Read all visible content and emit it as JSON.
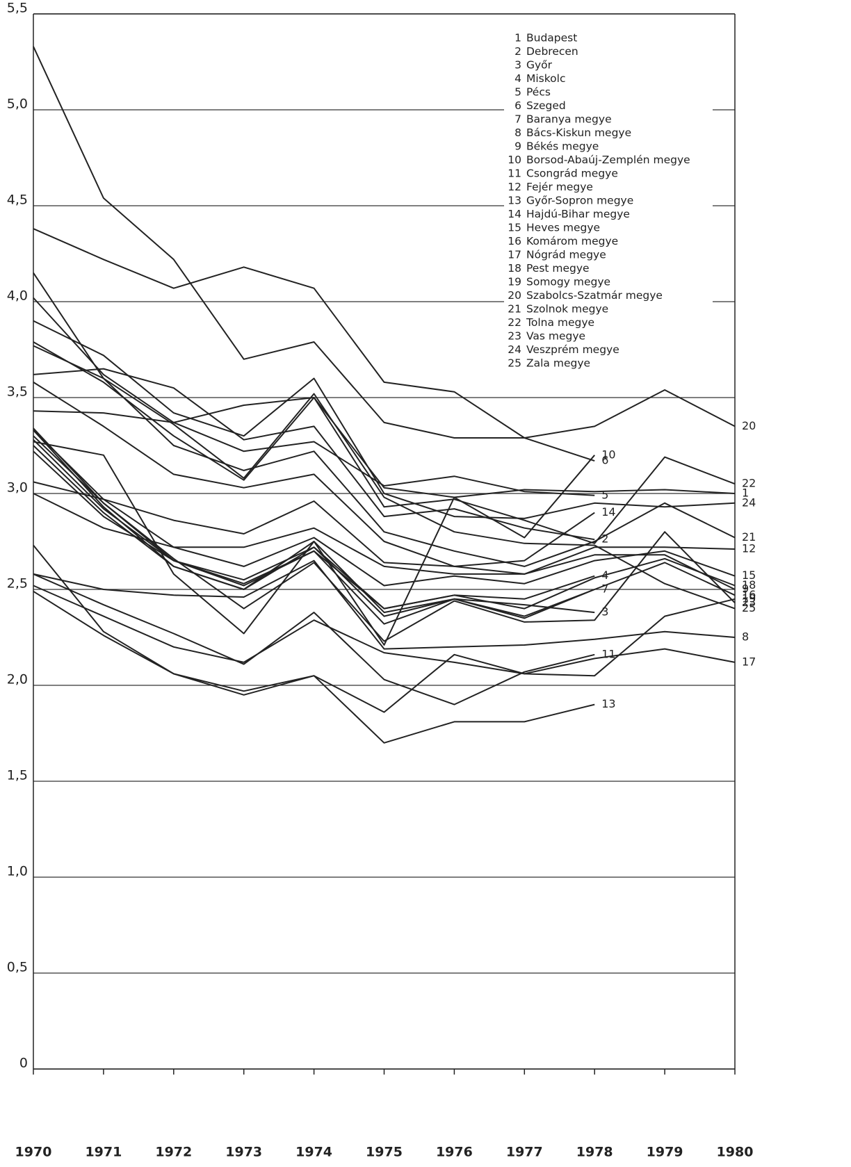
{
  "chart_data": {
    "type": "line",
    "categories": [
      "1970",
      "1971",
      "1972",
      "1973",
      "1974",
      "1975",
      "1976",
      "1977",
      "1978",
      "1979",
      "1980"
    ],
    "ylim": [
      0,
      5.5
    ],
    "yticks": [
      0,
      {
        "value": 0.5,
        "label": "0,5"
      },
      {
        "value": 1.0,
        "label": "1,0"
      },
      {
        "value": 1.5,
        "label": "1,5"
      },
      {
        "value": 2.0,
        "label": "2,0"
      },
      {
        "value": 2.5,
        "label": "2,5"
      },
      {
        "value": 3.0,
        "label": "3,0"
      },
      {
        "value": 3.5,
        "label": "3,5"
      },
      {
        "value": 4.0,
        "label": "4,0"
      },
      {
        "value": 4.5,
        "label": "4,5"
      },
      {
        "value": 5.0,
        "label": "5,0"
      },
      {
        "value": 5.5,
        "label": "5,5"
      }
    ],
    "grid": true,
    "color": "#222222",
    "series": [
      {
        "label": "1",
        "name": "Budapest",
        "values": [
          3.43,
          3.42,
          3.37,
          3.46,
          3.5,
          3.03,
          2.98,
          3.02,
          3.01,
          3.02,
          3.0
        ]
      },
      {
        "label": "2",
        "name": "Debrecen",
        "values": [
          3.62,
          3.65,
          3.55,
          3.28,
          3.35,
          2.88,
          2.92,
          2.82,
          2.76,
          null,
          null
        ]
      },
      {
        "label": "3",
        "name": "Győr",
        "values": [
          3.33,
          2.93,
          2.62,
          2.5,
          2.75,
          2.38,
          2.45,
          2.42,
          2.38,
          null,
          null
        ]
      },
      {
        "label": "4",
        "name": "Miskolc",
        "values": [
          3.3,
          2.95,
          2.65,
          2.55,
          2.72,
          2.4,
          2.47,
          2.45,
          2.57,
          null,
          null
        ]
      },
      {
        "label": "5",
        "name": "Pécs",
        "values": [
          4.02,
          3.62,
          3.37,
          3.22,
          3.27,
          3.04,
          3.09,
          3.01,
          2.99,
          null,
          null
        ]
      },
      {
        "label": "6",
        "name": "Szeged",
        "values": [
          4.38,
          4.22,
          4.07,
          4.18,
          4.07,
          3.58,
          3.53,
          3.29,
          3.17,
          null,
          null
        ]
      },
      {
        "label": "7",
        "name": "Baranya megye",
        "values": [
          3.28,
          2.92,
          2.65,
          2.52,
          2.7,
          2.32,
          2.45,
          2.36,
          2.5,
          null,
          null
        ]
      },
      {
        "label": "8",
        "name": "Bács-Kiskun megye",
        "values": [
          2.58,
          2.5,
          2.47,
          2.46,
          2.65,
          2.19,
          2.2,
          2.21,
          2.24,
          2.28,
          2.25
        ]
      },
      {
        "label": "9",
        "name": "Békés megye",
        "values": [
          3.0,
          2.82,
          2.72,
          2.72,
          2.82,
          2.62,
          2.58,
          2.58,
          2.68,
          2.68,
          2.5
        ]
      },
      {
        "label": "10",
        "name": "Borsod-Abaúj-Zemplén megye",
        "values": [
          3.27,
          3.2,
          2.58,
          2.27,
          2.75,
          2.21,
          2.98,
          2.77,
          3.2,
          null,
          null
        ]
      },
      {
        "label": "11",
        "name": "Csongrád megye",
        "values": [
          2.58,
          2.42,
          2.27,
          2.11,
          2.38,
          2.03,
          1.9,
          2.07,
          2.16,
          null,
          null
        ]
      },
      {
        "label": "12",
        "name": "Fejér megye",
        "values": [
          3.06,
          2.97,
          2.86,
          2.79,
          2.96,
          2.64,
          2.62,
          2.58,
          2.72,
          2.72,
          2.71
        ]
      },
      {
        "label": "13",
        "name": "Győr-Sopron megye",
        "values": [
          2.49,
          2.26,
          2.06,
          1.97,
          2.05,
          1.7,
          1.81,
          1.81,
          1.9,
          null,
          null
        ]
      },
      {
        "label": "14",
        "name": "Hajdú-Bihar megye",
        "values": [
          3.58,
          3.35,
          3.1,
          3.03,
          3.1,
          2.75,
          2.62,
          2.65,
          2.9,
          null,
          null
        ]
      },
      {
        "label": "15",
        "name": "Heves megye",
        "values": [
          3.33,
          2.97,
          2.72,
          2.62,
          2.77,
          2.52,
          2.57,
          2.53,
          2.65,
          2.7,
          2.57
        ]
      },
      {
        "label": "16",
        "name": "Komárom megye",
        "values": [
          3.25,
          2.9,
          2.62,
          2.5,
          2.72,
          2.36,
          2.45,
          2.35,
          2.5,
          2.64,
          2.47
        ]
      },
      {
        "label": "17",
        "name": "Nógrád megye",
        "values": [
          2.52,
          2.36,
          2.2,
          2.12,
          2.34,
          2.17,
          2.12,
          2.06,
          2.14,
          2.19,
          2.12
        ]
      },
      {
        "label": "18",
        "name": "Pest megye",
        "values": [
          3.22,
          2.88,
          2.65,
          2.53,
          2.7,
          2.4,
          2.47,
          2.4,
          2.56,
          2.66,
          2.52
        ]
      },
      {
        "label": "19",
        "name": "Somogy megye",
        "values": [
          2.73,
          2.28,
          2.06,
          1.95,
          2.05,
          1.86,
          2.16,
          2.06,
          2.05,
          2.36,
          2.45
        ]
      },
      {
        "label": "20",
        "name": "Szabolcs-Szatmár megye",
        "values": [
          5.33,
          4.54,
          4.22,
          3.7,
          3.79,
          3.37,
          3.29,
          3.29,
          3.35,
          3.54,
          3.35
        ]
      },
      {
        "label": "21",
        "name": "Szolnok megye",
        "values": [
          3.77,
          3.6,
          3.25,
          3.12,
          3.22,
          2.8,
          2.7,
          2.62,
          2.75,
          2.95,
          2.77
        ]
      },
      {
        "label": "22",
        "name": "Tolna megye",
        "values": [
          3.79,
          3.58,
          3.3,
          3.07,
          3.5,
          2.93,
          2.97,
          2.86,
          2.74,
          3.19,
          3.05
        ]
      },
      {
        "label": "23",
        "name": "Vas megye",
        "values": [
          3.34,
          2.95,
          2.66,
          2.4,
          2.64,
          2.23,
          2.44,
          2.33,
          2.34,
          2.8,
          2.43
        ]
      },
      {
        "label": "24",
        "name": "Veszprém megye",
        "values": [
          3.9,
          3.72,
          3.42,
          3.3,
          3.6,
          3.0,
          2.88,
          2.87,
          2.95,
          2.93,
          2.95
        ]
      },
      {
        "label": "25",
        "name": "Zala megye",
        "values": [
          4.15,
          3.6,
          3.36,
          3.08,
          3.52,
          2.98,
          2.8,
          2.74,
          2.73,
          2.53,
          2.4
        ]
      }
    ]
  }
}
